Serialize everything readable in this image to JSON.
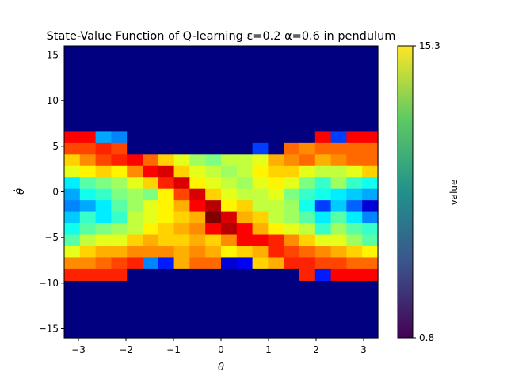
{
  "chart_data": {
    "type": "heatmap",
    "title": "State-Value Function of Q-learning ε=0.2 α=0.6 in pendulum",
    "xlabel": "θ",
    "ylabel": "θ̇",
    "colorbar_label": "value",
    "colormap": "jet",
    "vmin": 0.8,
    "vmax": 15.3,
    "colorbar_tick_labels": [
      "0.8",
      "15.3"
    ],
    "xlim": [
      -3.3,
      3.3
    ],
    "ylim": [
      -16,
      16
    ],
    "x_ticks": [
      -3,
      -2,
      -1,
      0,
      1,
      2,
      3
    ],
    "x_tick_labels": [
      "−3",
      "−2",
      "−1",
      "0",
      "1",
      "2",
      "3"
    ],
    "y_ticks": [
      -15,
      -10,
      -5,
      0,
      5,
      10,
      15
    ],
    "y_tick_labels": [
      "−15",
      "−10",
      "−5",
      "0",
      "5",
      "10",
      "15"
    ],
    "bins_x": 20,
    "bins_y": 28,
    "x_edges_range": [
      -3.3,
      3.3
    ],
    "y_edges_range": [
      -16,
      16
    ],
    "band_rows_y_range": [
      -9.7,
      6.6
    ],
    "values_note": "values estimated from colors; background cells ≈ 0.8",
    "base_value": 0.8,
    "band_values_by_row_top_to_bottom": [
      [
        13.5,
        13.5,
        5.0,
        4.5,
        0.8,
        0.8,
        0.8,
        0.8,
        0.8,
        0.8,
        0.8,
        0.8,
        0.8,
        0.8,
        0.8,
        0.8,
        13.5,
        3.5,
        13.5,
        13.5
      ],
      [
        12.5,
        12.5,
        13.0,
        12.5,
        0.8,
        0.8,
        0.8,
        0.8,
        0.8,
        0.8,
        0.8,
        0.8,
        3.5,
        0.8,
        12.0,
        11.5,
        12.0,
        12.0,
        12.0,
        12.0
      ],
      [
        10.5,
        11.5,
        12.5,
        13.0,
        13.5,
        12.0,
        10.5,
        9.5,
        8.5,
        8.0,
        9.0,
        9.0,
        9.5,
        11.0,
        11.5,
        12.0,
        11.0,
        11.5,
        12.0,
        12.0
      ],
      [
        9.5,
        10.0,
        10.5,
        10.0,
        11.5,
        13.5,
        14.0,
        10.5,
        9.5,
        9.0,
        8.5,
        9.0,
        10.0,
        10.5,
        10.5,
        9.5,
        9.0,
        9.0,
        9.5,
        10.5
      ],
      [
        6.0,
        7.5,
        8.0,
        8.5,
        9.5,
        10.5,
        13.0,
        14.0,
        10.0,
        9.5,
        9.0,
        8.5,
        9.5,
        10.0,
        9.5,
        8.0,
        7.0,
        8.5,
        7.0,
        6.5
      ],
      [
        5.0,
        6.5,
        7.0,
        8.0,
        8.5,
        8.0,
        10.0,
        12.5,
        14.0,
        10.5,
        9.5,
        9.0,
        9.0,
        9.5,
        8.0,
        7.0,
        6.5,
        6.0,
        5.5,
        5.0
      ],
      [
        4.5,
        5.0,
        6.0,
        7.5,
        8.5,
        9.5,
        10.0,
        11.0,
        13.5,
        14.5,
        10.0,
        10.5,
        9.0,
        9.0,
        8.5,
        6.5,
        3.5,
        5.5,
        4.0,
        2.0
      ],
      [
        5.5,
        7.0,
        6.0,
        7.0,
        9.0,
        9.5,
        10.0,
        10.5,
        11.0,
        15.3,
        14.0,
        11.0,
        10.5,
        9.0,
        8.5,
        7.5,
        6.0,
        7.5,
        6.0,
        4.5
      ],
      [
        6.5,
        7.5,
        8.0,
        8.5,
        9.0,
        10.0,
        10.5,
        11.0,
        11.5,
        13.5,
        14.5,
        13.5,
        11.0,
        10.0,
        9.5,
        9.0,
        7.0,
        8.5,
        7.5,
        7.0
      ],
      [
        7.5,
        9.0,
        9.5,
        9.5,
        10.5,
        11.0,
        10.5,
        10.5,
        11.0,
        10.5,
        11.5,
        13.5,
        13.5,
        13.0,
        11.5,
        10.5,
        9.5,
        9.5,
        8.5,
        7.5
      ],
      [
        9.5,
        10.5,
        11.0,
        11.0,
        11.5,
        11.5,
        11.5,
        11.0,
        11.5,
        11.0,
        10.0,
        10.5,
        11.0,
        13.0,
        12.5,
        12.0,
        11.5,
        11.0,
        10.5,
        10.0
      ],
      [
        11.5,
        11.5,
        12.0,
        12.5,
        13.0,
        4.5,
        3.0,
        11.0,
        12.0,
        12.0,
        2.0,
        2.5,
        10.5,
        11.0,
        13.0,
        13.0,
        12.5,
        12.5,
        12.0,
        12.0
      ],
      [
        13.0,
        13.0,
        13.0,
        13.0,
        0.8,
        0.8,
        0.8,
        0.8,
        0.8,
        0.8,
        0.8,
        0.8,
        0.8,
        0.8,
        0.8,
        13.0,
        3.0,
        13.5,
        13.5,
        13.5
      ]
    ]
  }
}
